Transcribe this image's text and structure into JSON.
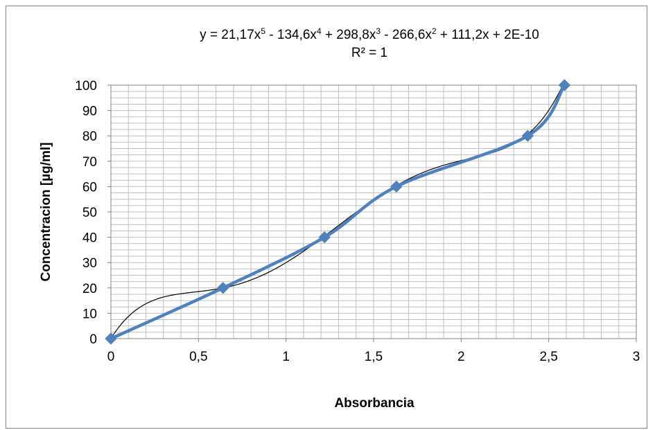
{
  "chart_data": {
    "type": "scatter",
    "xlabel": "Absorbancia",
    "ylabel": "Concentracion [µg/ml]",
    "xlim": [
      0,
      3
    ],
    "ylim": [
      0,
      100
    ],
    "x_ticks": [
      0,
      0.5,
      1,
      1.5,
      2,
      2.5,
      3
    ],
    "x_tick_labels": [
      "0",
      "0,5",
      "1",
      "1,5",
      "2",
      "2,5",
      "3"
    ],
    "y_ticks": [
      0,
      10,
      20,
      30,
      40,
      50,
      60,
      70,
      80,
      90,
      100
    ],
    "y_tick_labels": [
      "0",
      "10",
      "20",
      "30",
      "40",
      "50",
      "60",
      "70",
      "80",
      "90",
      "100"
    ],
    "grid": true,
    "series": [
      {
        "x": [
          0,
          0.64,
          1.22,
          1.63,
          2.38,
          2.59
        ],
        "y": [
          0,
          20,
          40,
          60,
          80,
          100
        ],
        "color": "#4f81bd",
        "marker": "diamond"
      }
    ],
    "trendline": {
      "type": "polynomial",
      "order": 5,
      "coefficients": [
        21.17,
        -134.6,
        298.8,
        -266.6,
        111.2,
        2e-10
      ],
      "color": "#000000",
      "equation_parts": [
        "y = 21,17x",
        "5",
        " - 134,6x",
        "4",
        " + 298,8x",
        "3",
        " - 266,6x",
        "2",
        " + 111,2x + 2E-10"
      ],
      "r_squared_label": "R² = 1"
    }
  },
  "colors": {
    "grid": "#bfbfbf",
    "plot_border": "#808080",
    "series": "#4f81bd",
    "trendline": "#000000"
  }
}
